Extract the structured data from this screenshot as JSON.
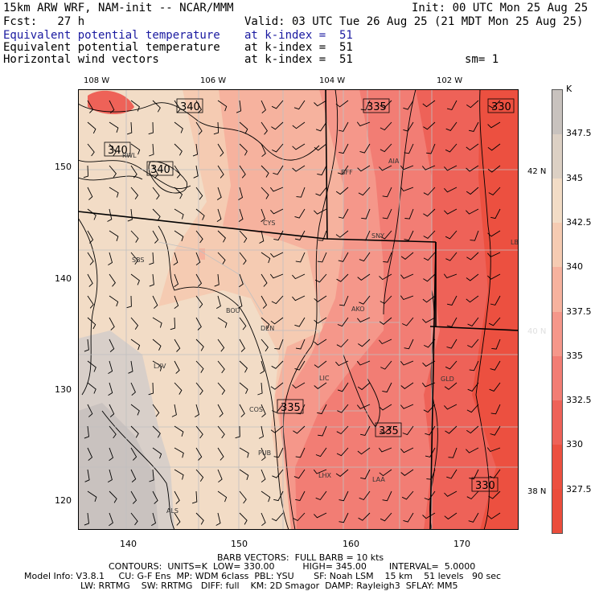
{
  "header": {
    "line1_left": "15km ARW WRF, NAM-init -- NCAR/MMM",
    "line1_right": "Init: 00 UTC Mon 25 Aug 25",
    "line2_left": "Fcst:   27 h",
    "line2_right": "Valid: 03 UTC Tue 26 Aug 25 (21 MDT Mon 25 Aug 25)",
    "line3_left": "Equivalent potential temperature",
    "line3_right": "at k-index =  51",
    "line4_left": "Equivalent potential temperature",
    "line4_right": "at k-index =  51",
    "line5_left": "Horizontal wind vectors",
    "line5_right": "at k-index =  51",
    "line5_sm": "sm= 1"
  },
  "map": {
    "top_lon_labels": [
      "108 W",
      "106 W",
      "104 W",
      "102 W"
    ],
    "right_lat_labels": [
      "42 N",
      "40 N",
      "38 N"
    ],
    "x_ticks": [
      "140",
      "150",
      "160",
      "170"
    ],
    "y_ticks": [
      "150",
      "140",
      "130",
      "120"
    ],
    "contour_labels": [
      "340",
      "335",
      "330",
      "340",
      "340",
      "335",
      "335",
      "330"
    ],
    "stations": [
      "RWL",
      "CYS",
      "SNY",
      "BFF",
      "AIA",
      "LBF",
      "SBS",
      "BOU",
      "DEN",
      "AKO",
      "LXV",
      "LIC",
      "GLD",
      "COS",
      "PUB",
      "LHX",
      "LAA",
      "ALS"
    ]
  },
  "colorbar": {
    "unit": "K",
    "labels": [
      "347.5",
      "345",
      "342.5",
      "340",
      "337.5",
      "335",
      "332.5",
      "330",
      "327.5"
    ],
    "colors": [
      "#c8c2be",
      "#dcd0c4",
      "#f2dcc6",
      "#f5cbb2",
      "#f6b29e",
      "#f5978a",
      "#f27d74",
      "#ee6258",
      "#ec5040",
      "#eb4d3c"
    ]
  },
  "footer": {
    "line1": "BARB VECTORS:  FULL BARB = 10 kts",
    "line2": "CONTOURS:  UNITS=K  LOW= 330.00          HIGH= 345.00        INTERVAL=  5.0000",
    "line3": "Model Info: V3.8.1     CU: G-F Ens  MP: WDM 6class  PBL: YSU       SF: Noah LSM    15 km    51 levels   90 sec",
    "line4": "LW: RRTMG    SW: RRTMG   DIFF: full    KM: 2D Smagor  DAMP: Rayleigh3  SFLAY: MM5"
  }
}
